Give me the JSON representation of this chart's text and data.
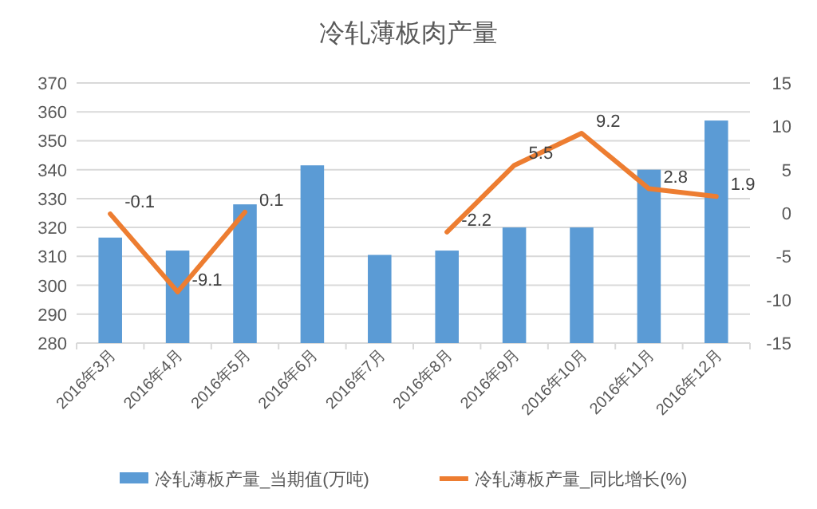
{
  "chart_data": {
    "type": "bar",
    "title": "冷轧薄板肉产量",
    "categories": [
      "2016年3月",
      "2016年4月",
      "2016年5月",
      "2016年6月",
      "2016年7月",
      "2016年8月",
      "2016年9月",
      "2016年10月",
      "2016年11月",
      "2016年12月"
    ],
    "series": [
      {
        "name": "冷轧薄板产量_当期值(万吨)",
        "color": "#5b9bd5",
        "values": [
          316.5,
          312,
          328,
          341.5,
          310.5,
          312,
          320,
          320,
          340,
          357
        ]
      },
      {
        "name": "冷轧薄板产量_同比增长(%)",
        "type": "line",
        "axis": "y2",
        "color": "#ed7d31",
        "values": [
          -0.1,
          -9.1,
          0.1,
          null,
          null,
          -2.2,
          5.5,
          9.2,
          2.8,
          1.9
        ],
        "value_labels": [
          "-0.1",
          "-9.1",
          "0.1",
          null,
          null,
          "-2.2",
          "5.5",
          "9.2",
          "2.8",
          "1.9"
        ]
      }
    ],
    "ylim": [
      280,
      370
    ],
    "yticks": [
      280,
      290,
      300,
      310,
      320,
      330,
      340,
      350,
      360,
      370
    ],
    "y2lim": [
      -15,
      15
    ],
    "y2ticks": [
      -15,
      -10,
      -5,
      0,
      5,
      10,
      15
    ],
    "grid": "y",
    "legend": "bottom"
  }
}
